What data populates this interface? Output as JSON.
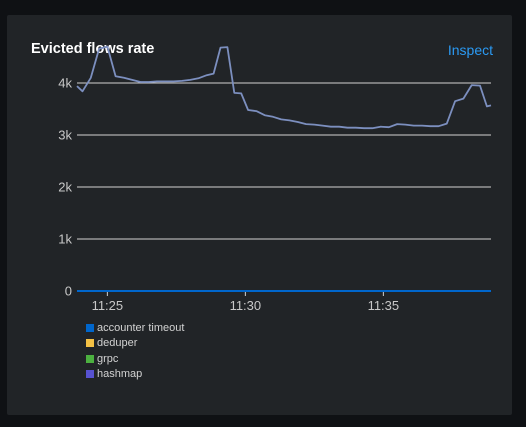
{
  "card": {
    "title": "Evicted flows rate",
    "inspect_label": "Inspect"
  },
  "colors": {
    "page_bg": "#0f1114",
    "card_bg": "#212427",
    "grid": "#d2d2d2",
    "tick_text": "#c8c8c8",
    "link": "#2b9af3",
    "total_line": "#7c8fbf"
  },
  "chart_data": {
    "type": "line",
    "title": "Evicted flows rate",
    "xlabel": "",
    "ylabel": "",
    "x_unit": "minutes",
    "xlim": [
      23.9,
      38.9
    ],
    "ylim": [
      0,
      4000
    ],
    "y_ticks": [
      0,
      1000,
      2000,
      3000,
      4000
    ],
    "y_tick_labels": [
      "0",
      "1k",
      "2k",
      "3k",
      "4k"
    ],
    "x_ticks": [
      25,
      30,
      35
    ],
    "x_tick_labels": [
      "11:25",
      "11:30",
      "11:35"
    ],
    "grid": true,
    "legend_position": "bottom-left",
    "legend": [
      {
        "name": "accounter timeout",
        "color": "#0066cc"
      },
      {
        "name": "deduper",
        "color": "#f4c145"
      },
      {
        "name": "grpc",
        "color": "#4cb140"
      },
      {
        "name": "hashmap",
        "color": "#5752d1"
      }
    ],
    "series": [
      {
        "name": "accounter timeout",
        "color": "#0066cc",
        "x": [
          23.9,
          38.9
        ],
        "values": [
          0,
          0
        ]
      },
      {
        "name": "",
        "color": "#7c8fbf",
        "x": [
          23.9,
          24.1,
          24.4,
          24.7,
          25.0,
          25.3,
          25.6,
          25.9,
          26.2,
          26.5,
          26.8,
          27.1,
          27.4,
          27.7,
          28.0,
          28.3,
          28.6,
          28.85,
          29.1,
          29.35,
          29.6,
          29.85,
          30.1,
          30.4,
          30.7,
          31.0,
          31.3,
          31.6,
          31.9,
          32.2,
          32.5,
          32.8,
          33.1,
          33.4,
          33.7,
          34.0,
          34.3,
          34.6,
          34.9,
          35.2,
          35.5,
          35.8,
          36.1,
          36.4,
          36.7,
          37.0,
          37.3,
          37.6,
          37.9,
          38.2,
          38.5,
          38.75,
          38.9
        ],
        "values": [
          3940,
          3840,
          4100,
          4660,
          4700,
          4130,
          4100,
          4060,
          4020,
          4020,
          4030,
          4030,
          4030,
          4040,
          4060,
          4090,
          4150,
          4180,
          4680,
          4690,
          3810,
          3800,
          3480,
          3460,
          3380,
          3350,
          3300,
          3280,
          3250,
          3210,
          3200,
          3180,
          3160,
          3160,
          3140,
          3140,
          3130,
          3130,
          3160,
          3150,
          3210,
          3200,
          3180,
          3180,
          3170,
          3170,
          3220,
          3650,
          3700,
          3960,
          3950,
          3550,
          3570
        ]
      }
    ]
  }
}
